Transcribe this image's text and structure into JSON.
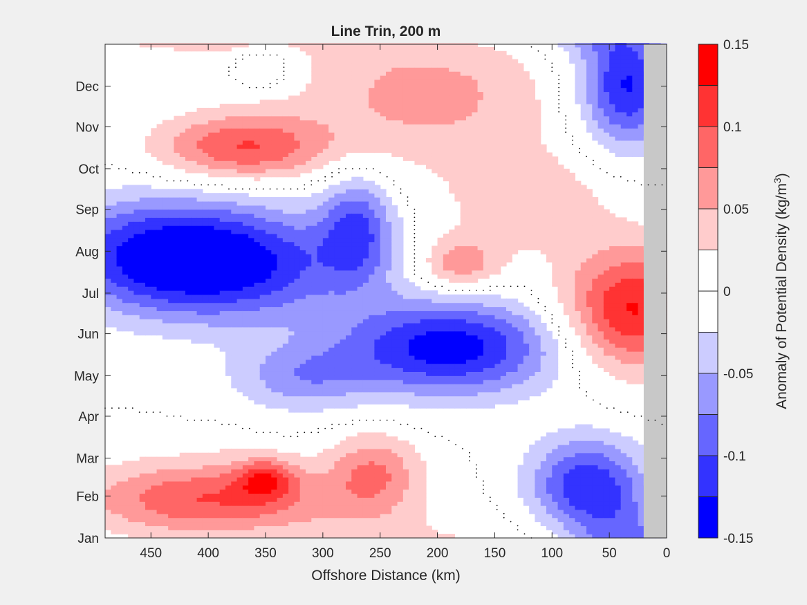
{
  "chart_data": {
    "type": "heatmap",
    "title": "Line Trin, 200 m",
    "xlabel": "Offshore Distance (km)",
    "colorbar_label": "Anomaly of Potential Density (kg/m",
    "colorbar_label_sup": "3",
    "colorbar_label_end": ")",
    "xlim": [
      490,
      0
    ],
    "x_reversed": true,
    "x_ticks": [
      450,
      400,
      350,
      300,
      250,
      200,
      150,
      100,
      50,
      0
    ],
    "y_ticks": [
      "Jan",
      "Feb",
      "Mar",
      "Apr",
      "May",
      "Jun",
      "Jul",
      "Aug",
      "Sep",
      "Oct",
      "Nov",
      "Dec"
    ],
    "y_tick_days": [
      1,
      32,
      60,
      91,
      121,
      152,
      182,
      213,
      244,
      274,
      305,
      335
    ],
    "ylim_days": [
      1,
      366
    ],
    "no_data_x_range": [
      20,
      0
    ],
    "color_levels": [
      -0.15,
      -0.125,
      -0.1,
      -0.075,
      -0.05,
      -0.025,
      0,
      0.025,
      0.05,
      0.075,
      0.1,
      0.125,
      0.15
    ],
    "colorbar_ticks": [
      {
        "value": 0.15,
        "label": "0.15"
      },
      {
        "value": 0.1,
        "label": "0.1"
      },
      {
        "value": 0.05,
        "label": "0.05"
      },
      {
        "value": 0,
        "label": "0"
      },
      {
        "value": -0.05,
        "label": "-0.05"
      },
      {
        "value": -0.1,
        "label": "-0.1"
      },
      {
        "value": -0.15,
        "label": "-0.15"
      }
    ],
    "colormap": [
      "#0000ff",
      "#3333ff",
      "#6666ff",
      "#9999ff",
      "#ccccff",
      "#ffffff",
      "#ffffff",
      "#ffcccc",
      "#ff9999",
      "#ff6666",
      "#ff3333",
      "#ff0000"
    ],
    "no_data_color": "#c8c8c8",
    "field_blobs": [
      {
        "x": 390,
        "day": 204,
        "rx": 110,
        "ry": 42,
        "value": -0.14
      },
      {
        "x": 460,
        "day": 215,
        "rx": 90,
        "ry": 40,
        "value": -0.06
      },
      {
        "x": 270,
        "day": 230,
        "rx": 32,
        "ry": 40,
        "value": -0.09
      },
      {
        "x": 190,
        "day": 142,
        "rx": 95,
        "ry": 35,
        "value": -0.14
      },
      {
        "x": 320,
        "day": 120,
        "rx": 60,
        "ry": 25,
        "value": -0.06
      },
      {
        "x": 70,
        "day": 40,
        "rx": 50,
        "ry": 35,
        "value": -0.12
      },
      {
        "x": 35,
        "day": 335,
        "rx": 40,
        "ry": 45,
        "value": -0.13
      },
      {
        "x": 390,
        "day": 75,
        "rx": 25,
        "ry": 10,
        "value": 0.01
      },
      {
        "x": 400,
        "day": 30,
        "rx": 110,
        "ry": 28,
        "value": 0.1
      },
      {
        "x": 350,
        "day": 45,
        "rx": 25,
        "ry": 15,
        "value": 0.08
      },
      {
        "x": 255,
        "day": 50,
        "rx": 40,
        "ry": 30,
        "value": 0.07
      },
      {
        "x": 370,
        "day": 290,
        "rx": 75,
        "ry": 25,
        "value": 0.1
      },
      {
        "x": 30,
        "day": 170,
        "rx": 60,
        "ry": 45,
        "value": 0.13
      },
      {
        "x": 210,
        "day": 330,
        "rx": 110,
        "ry": 50,
        "value": 0.06
      },
      {
        "x": 180,
        "day": 203,
        "rx": 35,
        "ry": 20,
        "value": 0.07
      },
      {
        "x": 120,
        "day": 250,
        "rx": 80,
        "ry": 40,
        "value": 0.04
      },
      {
        "x": 160,
        "day": 275,
        "rx": 25,
        "ry": 18,
        "value": 0.0
      },
      {
        "x": 190,
        "day": 10,
        "rx": 40,
        "ry": 20,
        "value": -0.01
      },
      {
        "x": 350,
        "day": 350,
        "rx": 25,
        "ry": 15,
        "value": -0.04
      }
    ]
  }
}
